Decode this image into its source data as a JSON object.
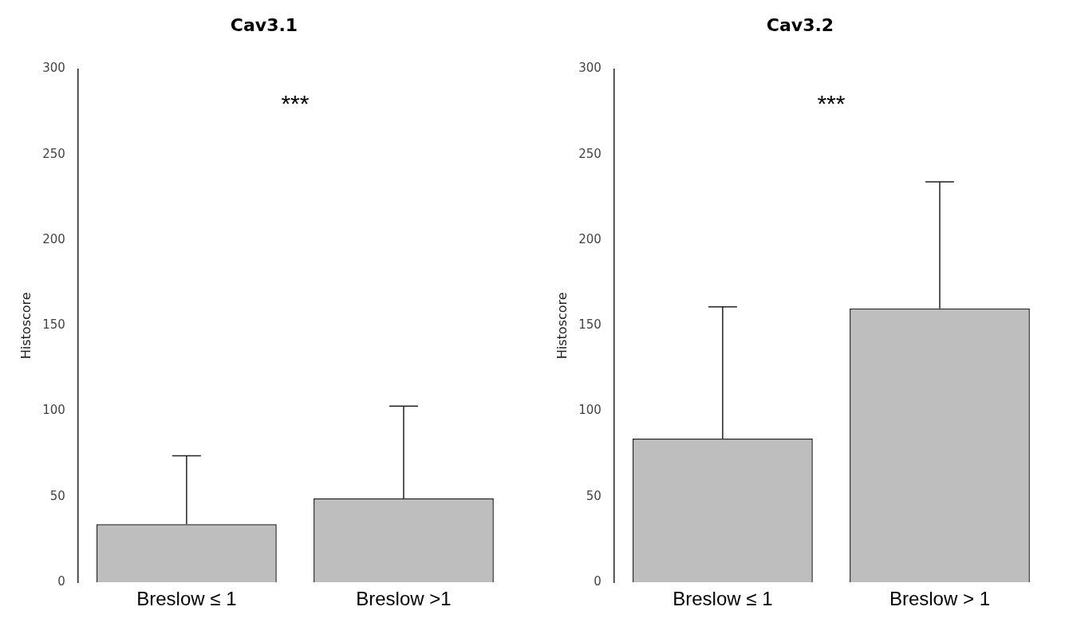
{
  "chart_data": [
    {
      "type": "bar",
      "title": "Cav3.1",
      "ylabel": "Histoscore",
      "categories": [
        "Breslow ≤ 1",
        "Breslow >1"
      ],
      "values": [
        34,
        49
      ],
      "errors": [
        [
          34,
          74
        ],
        [
          49,
          103
        ]
      ],
      "color": "#bebebe",
      "ylim": [
        0,
        300
      ],
      "yticks": [
        0,
        50,
        100,
        150,
        200,
        250,
        300
      ],
      "grid": false,
      "legend": false,
      "annotations": [
        "***"
      ]
    },
    {
      "type": "bar",
      "title": "Cav3.2",
      "ylabel": "Histoscore",
      "categories": [
        "Breslow ≤ 1",
        "Breslow > 1"
      ],
      "values": [
        84,
        160
      ],
      "errors": [
        [
          84,
          161
        ],
        [
          160,
          234
        ]
      ],
      "color": "#bebebe",
      "ylim": [
        0,
        300
      ],
      "yticks": [
        0,
        50,
        100,
        150,
        200,
        250,
        300
      ],
      "grid": false,
      "legend": false,
      "annotations": [
        "***"
      ]
    }
  ]
}
